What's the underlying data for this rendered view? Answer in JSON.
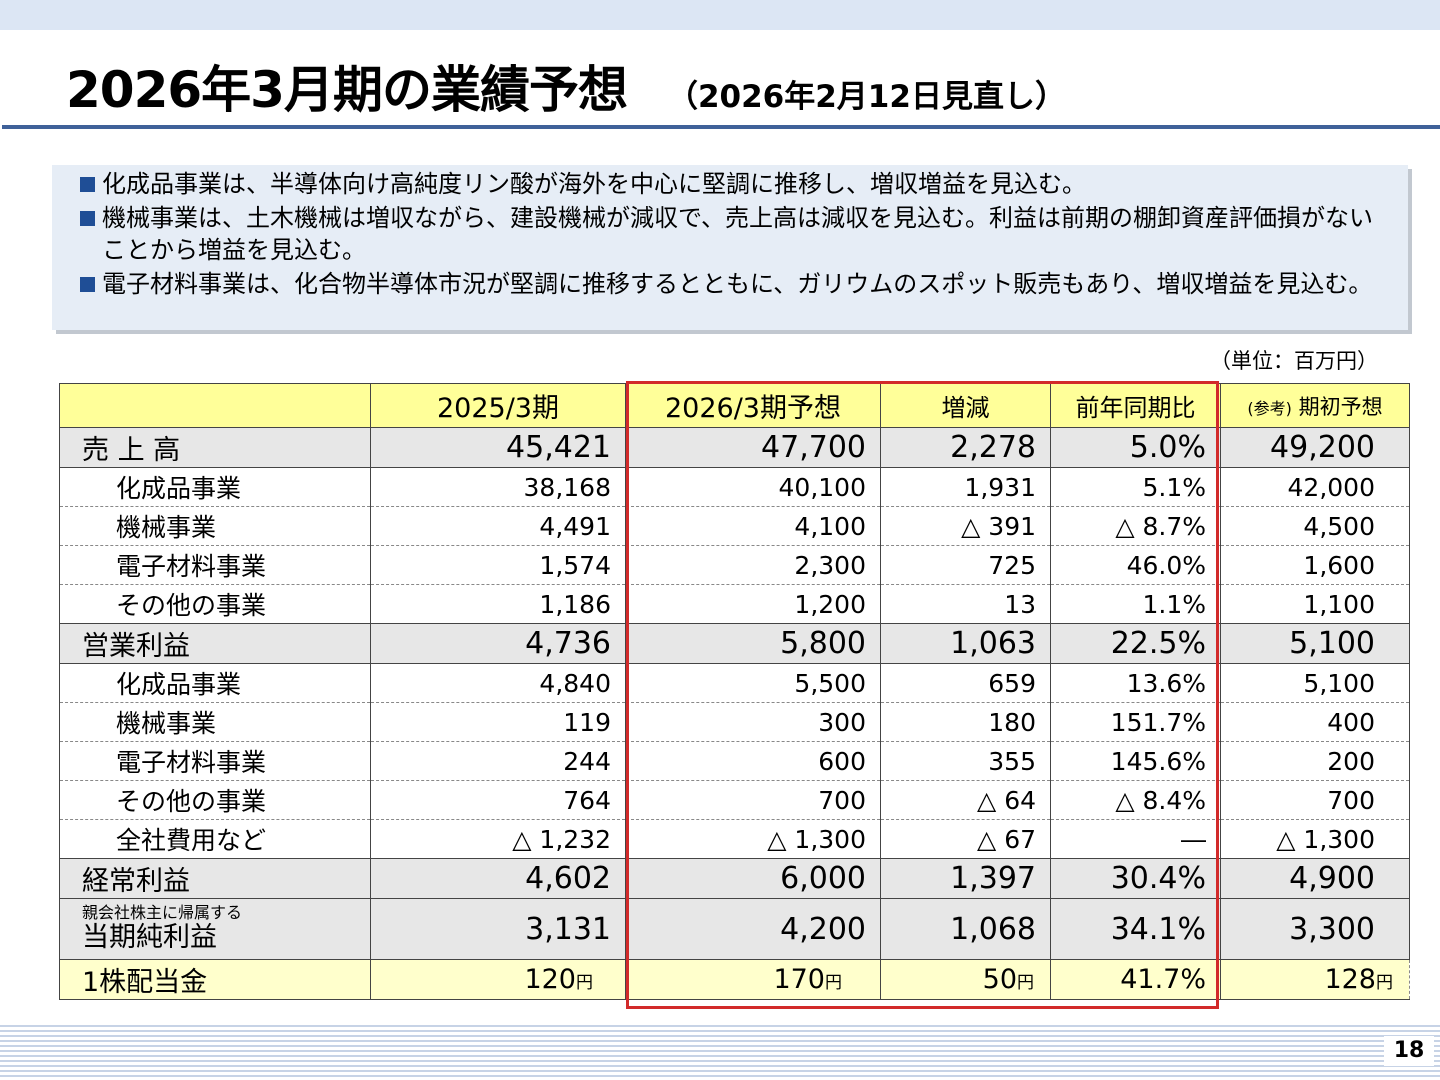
{
  "header": {
    "title": "2026年3月期の業績予想",
    "subtitle": "（2026年2月12日見直し）"
  },
  "summary": {
    "bullets": [
      "化成品事業は、半導体向け高純度リン酸が海外を中心に堅調に推移し、増収増益を見込む。",
      "機械事業は、土木機械は増収ながら、建設機械が減収で、売上高は減収を見込む。利益は前期の棚卸資産評価損がないことから増益を見込む。",
      "電子材料事業は、化合物半導体市況が堅調に推移するとともに、ガリウムのスポット販売もあり、増収増益を見込む。"
    ]
  },
  "table": {
    "unit": "（単位：百万円）",
    "headers": {
      "blank": "",
      "fy2025": "2025/3期",
      "fy2026": "2026/3期予想",
      "change": "増減",
      "yoy": "前年同期比",
      "ref_prefix": "(参考)",
      "ref": "期初予想"
    },
    "rows": [
      {
        "label": "売 上 高",
        "fy2025": "45,421",
        "fy2026": "47,700",
        "change": "2,278",
        "yoy": "5.0%",
        "initial": "49,200"
      },
      {
        "label": "化成品事業",
        "fy2025": "38,168",
        "fy2026": "40,100",
        "change": "1,931",
        "yoy": "5.1%",
        "initial": "42,000"
      },
      {
        "label": "機械事業",
        "fy2025": "4,491",
        "fy2026": "4,100",
        "change": "△ 391",
        "yoy": "△ 8.7%",
        "initial": "4,500"
      },
      {
        "label": "電子材料事業",
        "fy2025": "1,574",
        "fy2026": "2,300",
        "change": "725",
        "yoy": "46.0%",
        "initial": "1,600"
      },
      {
        "label": "その他の事業",
        "fy2025": "1,186",
        "fy2026": "1,200",
        "change": "13",
        "yoy": "1.1%",
        "initial": "1,100"
      },
      {
        "label": "営業利益",
        "fy2025": "4,736",
        "fy2026": "5,800",
        "change": "1,063",
        "yoy": "22.5%",
        "initial": "5,100"
      },
      {
        "label": "化成品事業",
        "fy2025": "4,840",
        "fy2026": "5,500",
        "change": "659",
        "yoy": "13.6%",
        "initial": "5,100"
      },
      {
        "label": "機械事業",
        "fy2025": "119",
        "fy2026": "300",
        "change": "180",
        "yoy": "151.7%",
        "initial": "400"
      },
      {
        "label": "電子材料事業",
        "fy2025": "244",
        "fy2026": "600",
        "change": "355",
        "yoy": "145.6%",
        "initial": "200"
      },
      {
        "label": "その他の事業",
        "fy2025": "764",
        "fy2026": "700",
        "change": "△ 64",
        "yoy": "△ 8.4%",
        "initial": "700"
      },
      {
        "label": "全社費用など",
        "fy2025": "△ 1,232",
        "fy2026": "△ 1,300",
        "change": "△ 67",
        "yoy": "―",
        "initial": "△ 1,300"
      },
      {
        "label": "経常利益",
        "fy2025": "4,602",
        "fy2026": "6,000",
        "change": "1,397",
        "yoy": "30.4%",
        "initial": "4,900"
      },
      {
        "label_small": "親会社株主に帰属する",
        "label": "当期純利益",
        "fy2025": "3,131",
        "fy2026": "4,200",
        "change": "1,068",
        "yoy": "34.1%",
        "initial": "3,300"
      },
      {
        "label": "1株配当金",
        "fy2025": "120",
        "fy2026": "170",
        "change": "50",
        "yoy": "41.7%",
        "initial": "128",
        "yen": "円"
      }
    ]
  },
  "footer": {
    "page_number": "18"
  },
  "colors": {
    "accent": "#1f4e96",
    "highlight_border": "#d22a2a",
    "header_fill": "#ffff99"
  }
}
